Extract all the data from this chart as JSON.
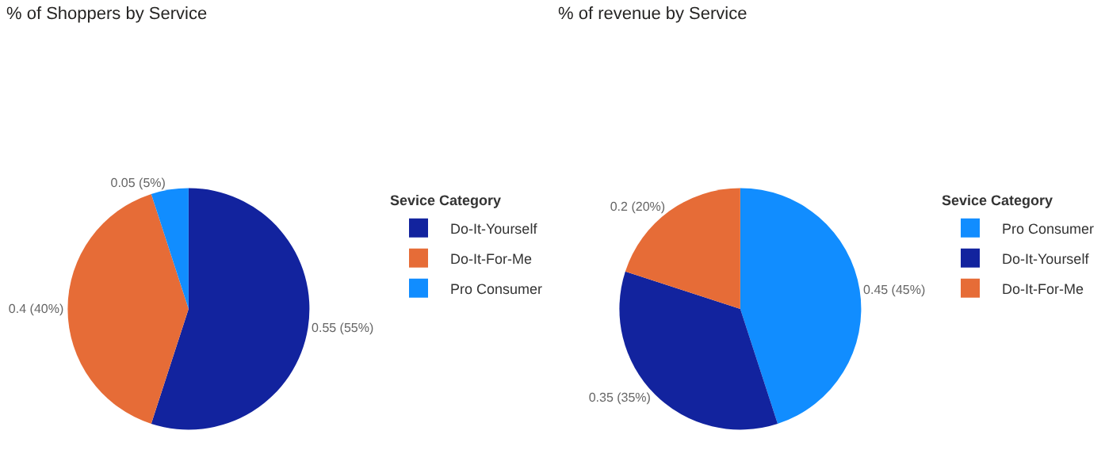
{
  "chart_data": [
    {
      "type": "pie",
      "title": "% of Shoppers by Service",
      "legend_title": "Sevice Category",
      "legend": "right",
      "categories": [
        "Do-It-Yourself",
        "Do-It-For-Me",
        "Pro Consumer"
      ],
      "values": [
        0.55,
        0.4,
        0.05
      ],
      "value_labels": [
        "0.55 (55%)",
        "0.4 (40%)",
        "0.05 (5%)"
      ],
      "colors": [
        "#12239e",
        "#e66c37",
        "#118dff"
      ]
    },
    {
      "type": "pie",
      "title": "% of revenue by Service",
      "legend_title": "Sevice Category",
      "legend": "right",
      "categories": [
        "Pro Consumer",
        "Do-It-Yourself",
        "Do-It-For-Me"
      ],
      "values": [
        0.45,
        0.35,
        0.2
      ],
      "value_labels": [
        "0.45 (45%)",
        "0.35 (35%)",
        "0.2 (20%)"
      ],
      "colors": [
        "#118dff",
        "#12239e",
        "#e66c37"
      ]
    }
  ]
}
